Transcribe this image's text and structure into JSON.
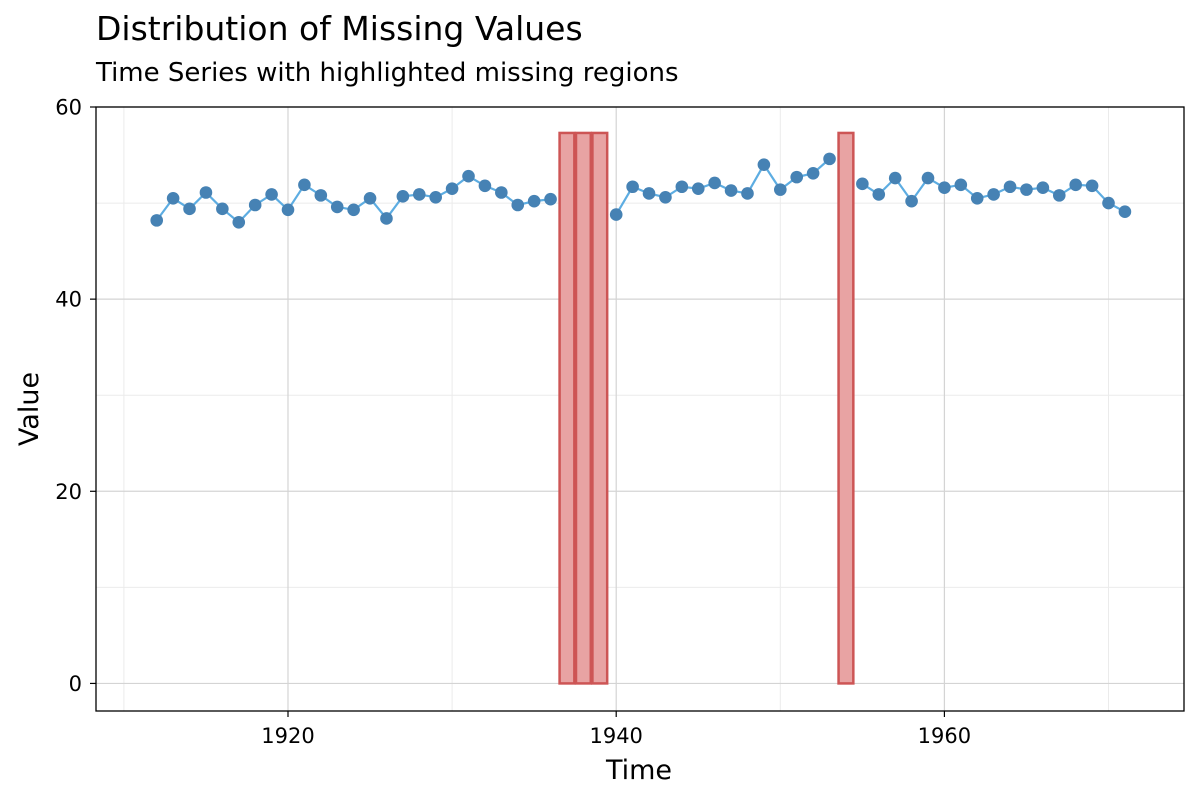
{
  "chart_data": {
    "type": "line",
    "title": "Distribution of Missing Values",
    "subtitle": "Time Series with highlighted missing regions",
    "xlabel": "Time",
    "ylabel": "Value",
    "xlim": [
      1908.3,
      1974.6
    ],
    "ylim": [
      -2.87,
      60.0
    ],
    "x_ticks": [
      1920,
      1940,
      1960
    ],
    "y_ticks": [
      0,
      20,
      40,
      60
    ],
    "grid": true,
    "series": [
      {
        "color": "#5DADE2",
        "point_color": "#4682B4",
        "x": [
          1912,
          1913,
          1914,
          1915,
          1916,
          1917,
          1918,
          1919,
          1920,
          1921,
          1922,
          1923,
          1924,
          1925,
          1926,
          1927,
          1928,
          1929,
          1930,
          1931,
          1932,
          1933,
          1934,
          1935,
          1936,
          1937,
          1938,
          1939,
          1940,
          1941,
          1942,
          1943,
          1944,
          1945,
          1946,
          1947,
          1948,
          1949,
          1950,
          1951,
          1952,
          1953,
          1954,
          1955,
          1956,
          1957,
          1958,
          1959,
          1960,
          1961,
          1962,
          1963,
          1964,
          1965,
          1966,
          1967,
          1968,
          1969,
          1970,
          1971
        ],
        "values": [
          48.2,
          50.5,
          49.4,
          51.1,
          49.4,
          48.0,
          49.8,
          50.9,
          49.3,
          51.9,
          50.8,
          49.6,
          49.3,
          50.5,
          48.4,
          50.7,
          50.9,
          50.6,
          51.5,
          52.8,
          51.8,
          51.1,
          49.8,
          50.2,
          50.4,
          null,
          null,
          null,
          48.8,
          51.7,
          51.0,
          50.6,
          51.7,
          51.5,
          52.1,
          51.3,
          51.0,
          54.0,
          51.4,
          52.7,
          53.1,
          54.6,
          null,
          52.0,
          50.9,
          52.6,
          50.2,
          52.6,
          51.6,
          51.9,
          50.5,
          50.9,
          51.7,
          51.4,
          51.6,
          50.8,
          51.9,
          51.8,
          50.0,
          49.1
        ]
      }
    ],
    "missing_regions": {
      "fill": "#E8A3A3",
      "stroke": "#CD5555",
      "height": 57.3,
      "x": [
        1937,
        1938,
        1939,
        1954
      ]
    }
  }
}
